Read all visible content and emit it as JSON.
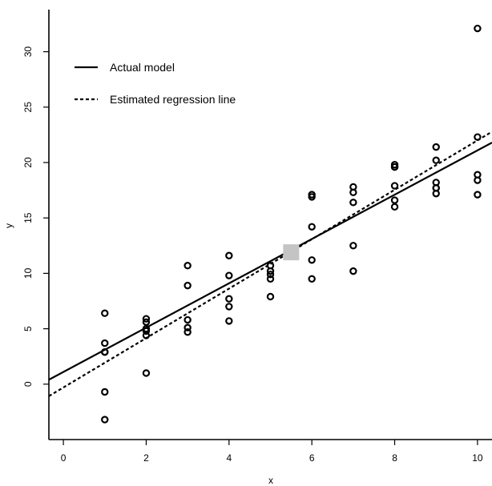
{
  "chart_data": {
    "type": "scatter",
    "title": "",
    "xlabel": "x",
    "ylabel": "y",
    "xlim": [
      -0.35,
      10.35
    ],
    "ylim": [
      -5,
      33.8
    ],
    "xticks": [
      0,
      2,
      4,
      6,
      8,
      10
    ],
    "yticks": [
      0,
      5,
      10,
      15,
      20,
      25,
      30
    ],
    "grid": false,
    "legend_position": "top-left",
    "colors": {
      "points": "#000000",
      "lines": "#000000",
      "mean_marker": "#c4c4c4"
    },
    "points": {
      "x": [
        1,
        1,
        1,
        1,
        1,
        1,
        2,
        2,
        2,
        2,
        2,
        2,
        3,
        3,
        3,
        3,
        3,
        4,
        4,
        4,
        4,
        4,
        5,
        5,
        5,
        5,
        5,
        6,
        6,
        6,
        6,
        6,
        7,
        7,
        7,
        7,
        7,
        8,
        8,
        8,
        8,
        8,
        8,
        9,
        9,
        9,
        9,
        9,
        9,
        10,
        10,
        10,
        10,
        10
      ],
      "y": [
        6.4,
        3.7,
        2.9,
        -0.7,
        -3.2,
        2.9,
        5.9,
        5.6,
        5.0,
        4.8,
        4.4,
        1.0,
        10.7,
        8.9,
        5.8,
        5.1,
        4.7,
        11.6,
        9.8,
        7.7,
        7.0,
        5.7,
        10.7,
        10.2,
        9.9,
        9.5,
        7.9,
        17.1,
        16.9,
        14.2,
        11.2,
        9.5,
        17.8,
        17.3,
        16.4,
        12.5,
        10.2,
        19.8,
        19.6,
        17.9,
        16.6,
        16.0,
        19.6,
        21.4,
        20.2,
        18.2,
        17.7,
        17.2,
        17.7,
        32.1,
        22.3,
        18.9,
        18.4,
        17.1
      ]
    },
    "mean_point": {
      "x": 5.5,
      "y": 11.9
    },
    "series": [
      {
        "name": "Actual model",
        "style": "solid",
        "intercept": 1.1,
        "slope": 2.0
      },
      {
        "name": "Estimated regression line",
        "style": "dashed",
        "intercept": -0.3,
        "slope": 2.23
      }
    ],
    "legend": [
      "Actual model",
      "Estimated regression line"
    ]
  }
}
